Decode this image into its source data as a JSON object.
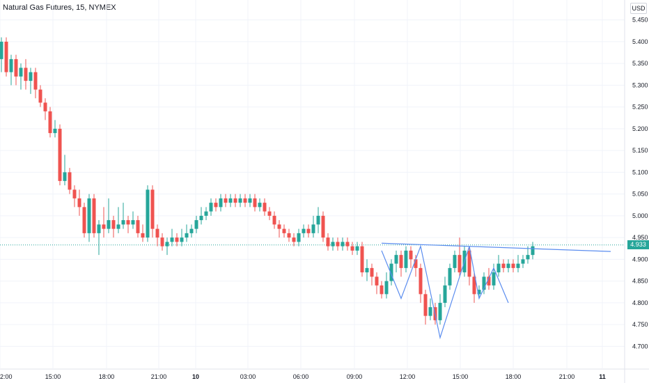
{
  "header": {
    "title": "Natural Gas Futures, 15, NYMEX",
    "currency": "USD"
  },
  "colors": {
    "up": "#26a69a",
    "down": "#ef5350",
    "trendline": "#5b8def",
    "pattern": "#5b8def",
    "last_price_line": "#26a69a"
  },
  "last_price": {
    "value": 4.933,
    "label": "4.933"
  },
  "chart_data": {
    "type": "candlestick",
    "title": "Natural Gas Futures, 15, NYMEX",
    "ylim": [
      4.67,
      5.47
    ],
    "y_ticks": [
      "5.450",
      "5.400",
      "5.350",
      "5.300",
      "5.250",
      "5.200",
      "5.150",
      "5.100",
      "5.050",
      "5.000",
      "4.950",
      "4.900",
      "4.850",
      "4.800",
      "4.750",
      "4.700"
    ],
    "x_ticks": [
      "2:00",
      "15:00",
      "18:00",
      "21:00",
      "10",
      "03:00",
      "06:00",
      "09:00",
      "12:00",
      "15:00",
      "18:00",
      "21:00",
      "11"
    ],
    "grid": true,
    "candles": [
      [
        5.36,
        5.4,
        5.41,
        5.33
      ],
      [
        5.4,
        5.33,
        5.41,
        5.32
      ],
      [
        5.33,
        5.36,
        5.37,
        5.3
      ],
      [
        5.36,
        5.32,
        5.37,
        5.3
      ],
      [
        5.32,
        5.34,
        5.35,
        5.29
      ],
      [
        5.34,
        5.31,
        5.36,
        5.29
      ],
      [
        5.31,
        5.33,
        5.34,
        5.28
      ],
      [
        5.33,
        5.29,
        5.34,
        5.27
      ],
      [
        5.29,
        5.26,
        5.3,
        5.25
      ],
      [
        5.26,
        5.24,
        5.27,
        5.22
      ],
      [
        5.24,
        5.19,
        5.25,
        5.18
      ],
      [
        5.19,
        5.2,
        5.22,
        5.18
      ],
      [
        5.2,
        5.08,
        5.21,
        5.07
      ],
      [
        5.08,
        5.1,
        5.14,
        5.07
      ],
      [
        5.1,
        5.06,
        5.11,
        5.05
      ],
      [
        5.06,
        5.04,
        5.07,
        5.02
      ],
      [
        5.04,
        5.02,
        5.06,
        5.0
      ],
      [
        5.02,
        4.96,
        5.03,
        4.95
      ],
      [
        4.96,
        5.04,
        5.05,
        4.94
      ],
      [
        5.04,
        4.96,
        5.05,
        4.95
      ],
      [
        4.96,
        4.98,
        4.99,
        4.91
      ],
      [
        4.98,
        4.97,
        5.02,
        4.95
      ],
      [
        4.97,
        4.99,
        5.04,
        4.96
      ],
      [
        4.99,
        4.97,
        5.0,
        4.95
      ],
      [
        4.97,
        4.98,
        5.02,
        4.96
      ],
      [
        4.98,
        4.99,
        5.03,
        4.97
      ],
      [
        4.99,
        4.98,
        5.0,
        4.96
      ],
      [
        4.98,
        4.99,
        5.01,
        4.97
      ],
      [
        4.99,
        4.96,
        5.0,
        4.95
      ],
      [
        4.96,
        4.95,
        4.98,
        4.94
      ],
      [
        4.95,
        5.06,
        5.07,
        4.94
      ],
      [
        5.06,
        4.97,
        5.07,
        4.95
      ],
      [
        4.97,
        4.95,
        4.98,
        4.93
      ],
      [
        4.95,
        4.93,
        4.96,
        4.92
      ],
      [
        4.93,
        4.94,
        4.95,
        4.91
      ],
      [
        4.94,
        4.95,
        4.97,
        4.93
      ],
      [
        4.95,
        4.94,
        4.96,
        4.93
      ],
      [
        4.94,
        4.95,
        4.97,
        4.93
      ],
      [
        4.95,
        4.96,
        4.98,
        4.94
      ],
      [
        4.96,
        4.97,
        4.98,
        4.95
      ],
      [
        4.97,
        4.99,
        5.0,
        4.96
      ],
      [
        4.99,
        5.0,
        5.02,
        4.98
      ],
      [
        5.0,
        5.01,
        5.02,
        4.99
      ],
      [
        5.01,
        5.03,
        5.04,
        5.0
      ],
      [
        5.03,
        5.02,
        5.04,
        5.01
      ],
      [
        5.02,
        5.04,
        5.05,
        5.01
      ],
      [
        5.04,
        5.03,
        5.05,
        5.02
      ],
      [
        5.03,
        5.04,
        5.05,
        5.02
      ],
      [
        5.04,
        5.03,
        5.05,
        5.02
      ],
      [
        5.03,
        5.04,
        5.05,
        5.02
      ],
      [
        5.04,
        5.03,
        5.05,
        5.02
      ],
      [
        5.03,
        5.04,
        5.05,
        5.02
      ],
      [
        5.04,
        5.02,
        5.05,
        5.01
      ],
      [
        5.02,
        5.03,
        5.04,
        5.01
      ],
      [
        5.03,
        5.01,
        5.04,
        5.0
      ],
      [
        5.01,
        5.0,
        5.02,
        4.99
      ],
      [
        5.0,
        4.98,
        5.01,
        4.97
      ],
      [
        4.98,
        4.97,
        4.99,
        4.95
      ],
      [
        4.97,
        4.96,
        4.98,
        4.95
      ],
      [
        4.96,
        4.95,
        4.97,
        4.94
      ],
      [
        4.95,
        4.94,
        4.96,
        4.93
      ],
      [
        4.94,
        4.96,
        4.97,
        4.93
      ],
      [
        4.96,
        4.97,
        4.98,
        4.95
      ],
      [
        4.97,
        4.96,
        4.98,
        4.95
      ],
      [
        4.96,
        4.98,
        5.0,
        4.95
      ],
      [
        4.98,
        5.0,
        5.02,
        4.96
      ],
      [
        5.0,
        4.95,
        5.01,
        4.94
      ],
      [
        4.95,
        4.93,
        4.96,
        4.92
      ],
      [
        4.93,
        4.94,
        4.95,
        4.92
      ],
      [
        4.94,
        4.93,
        4.95,
        4.92
      ],
      [
        4.93,
        4.94,
        4.95,
        4.92
      ],
      [
        4.94,
        4.93,
        4.95,
        4.92
      ],
      [
        4.93,
        4.92,
        4.94,
        4.91
      ],
      [
        4.92,
        4.93,
        4.94,
        4.91
      ],
      [
        4.93,
        4.87,
        4.94,
        4.86
      ],
      [
        4.87,
        4.88,
        4.9,
        4.85
      ],
      [
        4.88,
        4.86,
        4.89,
        4.84
      ],
      [
        4.86,
        4.84,
        4.87,
        4.82
      ],
      [
        4.84,
        4.82,
        4.85,
        4.81
      ],
      [
        4.82,
        4.85,
        4.87,
        4.81
      ],
      [
        4.85,
        4.89,
        4.9,
        4.84
      ],
      [
        4.89,
        4.91,
        4.92,
        4.87
      ],
      [
        4.91,
        4.88,
        4.92,
        4.86
      ],
      [
        4.88,
        4.92,
        4.93,
        4.87
      ],
      [
        4.92,
        4.9,
        4.93,
        4.88
      ],
      [
        4.9,
        4.88,
        4.91,
        4.86
      ],
      [
        4.88,
        4.82,
        4.89,
        4.8
      ],
      [
        4.82,
        4.77,
        4.83,
        4.75
      ],
      [
        4.77,
        4.79,
        4.81,
        4.76
      ],
      [
        4.79,
        4.76,
        4.8,
        4.75
      ],
      [
        4.76,
        4.8,
        4.82,
        4.75
      ],
      [
        4.8,
        4.84,
        4.86,
        4.79
      ],
      [
        4.84,
        4.88,
        4.89,
        4.83
      ],
      [
        4.88,
        4.91,
        4.92,
        4.87
      ],
      [
        4.91,
        4.87,
        4.95,
        4.86
      ],
      [
        4.87,
        4.92,
        4.93,
        4.86
      ],
      [
        4.92,
        4.86,
        4.93,
        4.84
      ],
      [
        4.86,
        4.82,
        4.87,
        4.8
      ],
      [
        4.82,
        4.83,
        4.84,
        4.81
      ],
      [
        4.83,
        4.86,
        4.87,
        4.82
      ],
      [
        4.86,
        4.84,
        4.88,
        4.83
      ],
      [
        4.84,
        4.87,
        4.89,
        4.83
      ],
      [
        4.87,
        4.89,
        4.91,
        4.86
      ],
      [
        4.89,
        4.88,
        4.9,
        4.87
      ],
      [
        4.88,
        4.89,
        4.9,
        4.87
      ],
      [
        4.89,
        4.88,
        4.9,
        4.87
      ],
      [
        4.88,
        4.89,
        4.91,
        4.87
      ],
      [
        4.89,
        4.9,
        4.91,
        4.88
      ],
      [
        4.9,
        4.91,
        4.93,
        4.89
      ],
      [
        4.91,
        4.93,
        4.94,
        4.9
      ]
    ],
    "annotations": {
      "trendline": {
        "start": [
          78,
          4.937
        ],
        "end": [
          112,
          4.918
        ]
      },
      "pattern_points": [
        [
          78,
          4.92
        ],
        [
          82,
          4.81
        ],
        [
          86,
          4.93
        ],
        [
          90,
          4.72
        ],
        [
          94,
          4.86
        ],
        [
          96,
          4.93
        ],
        [
          98,
          4.81
        ],
        [
          101,
          4.88
        ],
        [
          104,
          4.8
        ]
      ]
    }
  }
}
